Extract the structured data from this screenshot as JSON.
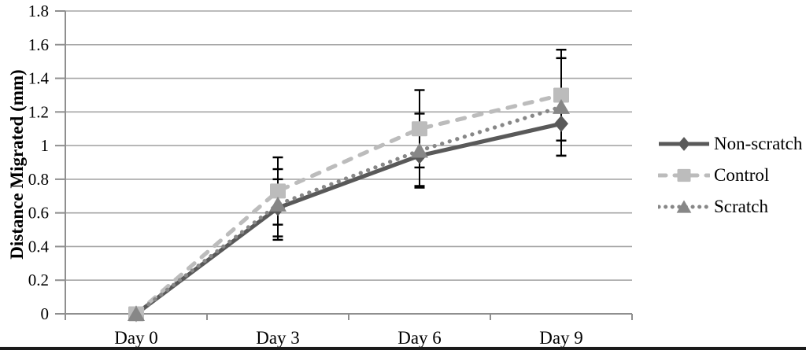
{
  "chart_data": {
    "type": "line",
    "title": "",
    "ylabel": "Distance Migrated (mm)",
    "xlabel": "",
    "categories": [
      "Day 0",
      "Day 3",
      "Day 6",
      "Day 9"
    ],
    "y_ticks": [
      "0",
      "0.2",
      "0.4",
      "0.6",
      "0.8",
      "1",
      "1.2",
      "1.4",
      "1.6",
      "1.8"
    ],
    "ylim": [
      0,
      1.8
    ],
    "grid": true,
    "legend_position": "right",
    "error_bar_color": "#000000",
    "series": [
      {
        "name": "Non-scratch",
        "values": [
          0,
          0.63,
          0.94,
          1.13
        ],
        "errors": [
          0,
          0.17,
          0.18,
          0.19
        ],
        "color": "#595959",
        "line_style": "solid",
        "marker": "diamond"
      },
      {
        "name": "Control",
        "values": [
          0,
          0.73,
          1.1,
          1.3
        ],
        "errors": [
          0,
          0.2,
          0.23,
          0.27
        ],
        "color": "#bcbcbc",
        "line_style": "dashed",
        "marker": "square"
      },
      {
        "name": "Scratch",
        "values": [
          0,
          0.65,
          0.97,
          1.23
        ],
        "errors": [
          0,
          0.21,
          0.22,
          0.29
        ],
        "color": "#878787",
        "line_style": "dotted",
        "marker": "triangle"
      }
    ],
    "style": {
      "grid_color": "#a6a6a6",
      "axis_color": "#8f8f8f",
      "text_color": "#000000",
      "figure_bottom_rule_color": "#1a1a1a"
    }
  }
}
